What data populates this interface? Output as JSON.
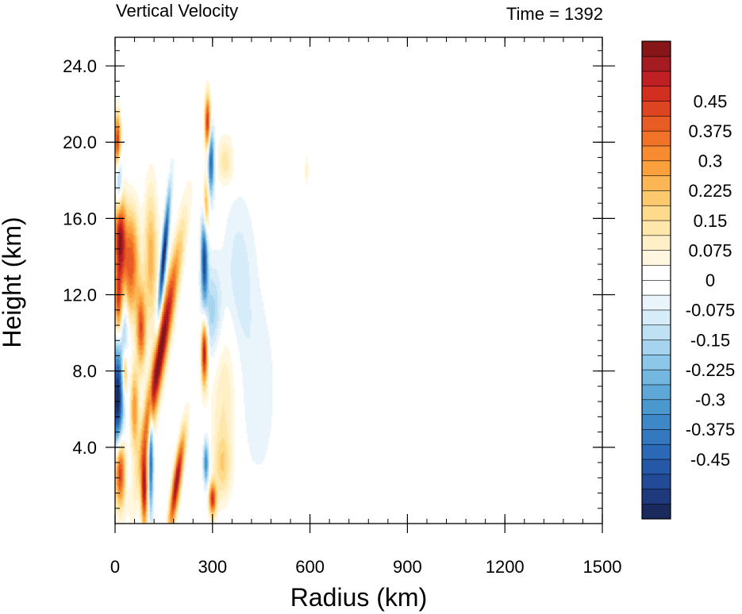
{
  "chart_data": {
    "type": "heatmap",
    "title": "Vertical Velocity",
    "subtitle": "Time = 1392",
    "xlabel": "Radius (km)",
    "ylabel": "Height (km)",
    "xlim": [
      0,
      1500
    ],
    "ylim": [
      0,
      25.5
    ],
    "x_ticks": [
      0,
      300,
      600,
      900,
      1200,
      1500
    ],
    "x_tick_labels": [
      "0",
      "300",
      "600",
      "900",
      "1200",
      "1500"
    ],
    "y_ticks": [
      4,
      8,
      12,
      16,
      20,
      24
    ],
    "y_tick_labels": [
      "4.0",
      "8.0",
      "12.0",
      "16.0",
      "20.0",
      "24.0"
    ],
    "grid": false,
    "colorbar": {
      "levels": [
        -0.5625,
        -0.525,
        -0.4875,
        -0.45,
        -0.4125,
        -0.375,
        -0.3375,
        -0.3,
        -0.2625,
        -0.225,
        -0.1875,
        -0.15,
        -0.1125,
        -0.075,
        -0.0375,
        0,
        0.0375,
        0.075,
        0.1125,
        0.15,
        0.1875,
        0.225,
        0.2625,
        0.3,
        0.3375,
        0.375,
        0.4125,
        0.45,
        0.4875,
        0.525,
        0.5625
      ],
      "tick_values": [
        -0.45,
        -0.375,
        -0.3,
        -0.225,
        -0.15,
        -0.075,
        0,
        0.075,
        0.15,
        0.225,
        0.3,
        0.375,
        0.45
      ],
      "tick_labels": [
        "-0.45",
        "-0.375",
        "-0.3",
        "-0.225",
        "-0.15",
        "-0.075",
        "0",
        "0.075",
        "0.15",
        "0.225",
        "0.3",
        "0.375",
        "0.45"
      ],
      "colors": [
        "#1b2a5c",
        "#1f3a7c",
        "#234a96",
        "#2658a8",
        "#2b68b6",
        "#3478bf",
        "#3f88c7",
        "#4b98cf",
        "#5ea8d8",
        "#73b7e0",
        "#8cc6e8",
        "#a6d4ee",
        "#bfe1f3",
        "#d6ecf8",
        "#eaf5fb",
        "#ffffff",
        "#ffffff",
        "#fff7e0",
        "#fff0c8",
        "#fee7aa",
        "#fedb8c",
        "#fdc96f",
        "#fcb554",
        "#faa13e",
        "#f68b31",
        "#f07329",
        "#e85c25",
        "#dd4422",
        "#d32f21",
        "#c01f23",
        "#a51b22",
        "#861618"
      ]
    },
    "features": [
      {
        "x": 140,
        "y": 9,
        "sx": 14,
        "sy": 3.8,
        "v": 0.62,
        "tilt": 10
      },
      {
        "x": 190,
        "y": 2.2,
        "sx": 9,
        "sy": 1.8,
        "v": 0.56,
        "tilt": 8
      },
      {
        "x": 90,
        "y": 1.8,
        "sx": 7,
        "sy": 1.4,
        "v": 0.52,
        "tilt": 0
      },
      {
        "x": 15,
        "y": 2.8,
        "sx": 11,
        "sy": 1.3,
        "v": 0.52,
        "tilt": 0
      },
      {
        "x": 15,
        "y": 15,
        "sx": 12,
        "sy": 1.6,
        "v": 0.55,
        "tilt": 0
      },
      {
        "x": 8,
        "y": 20,
        "sx": 7,
        "sy": 1.0,
        "v": 0.5,
        "tilt": 0
      },
      {
        "x": 50,
        "y": 14.5,
        "sx": 16,
        "sy": 1.6,
        "v": 0.28,
        "tilt": 0
      },
      {
        "x": 45,
        "y": 12.5,
        "sx": 20,
        "sy": 1.5,
        "v": 0.22,
        "tilt": 0
      },
      {
        "x": 80,
        "y": 10.2,
        "sx": 10,
        "sy": 1.4,
        "v": 0.4,
        "tilt": 0
      },
      {
        "x": 110,
        "y": 14,
        "sx": 14,
        "sy": 2.5,
        "v": 0.25,
        "tilt": 0
      },
      {
        "x": 8,
        "y": 6.5,
        "sx": 12,
        "sy": 2.0,
        "v": -0.62,
        "tilt": 0
      },
      {
        "x": 150,
        "y": 14,
        "sx": 6,
        "sy": 2.2,
        "v": -0.6,
        "tilt": 5
      },
      {
        "x": 110,
        "y": 3.5,
        "sx": 5,
        "sy": 2.0,
        "v": -0.45,
        "tilt": 0
      },
      {
        "x": 12,
        "y": 18,
        "sx": 7,
        "sy": 1.2,
        "v": -0.3,
        "tilt": 0
      },
      {
        "x": 30,
        "y": 10,
        "sx": 8,
        "sy": 1.6,
        "v": -0.2,
        "tilt": 0
      },
      {
        "x": 275,
        "y": 9,
        "sx": 7,
        "sy": 1.2,
        "v": 0.56,
        "tilt": 0
      },
      {
        "x": 285,
        "y": 21,
        "sx": 6,
        "sy": 1.0,
        "v": 0.5,
        "tilt": 0
      },
      {
        "x": 280,
        "y": 16.5,
        "sx": 6,
        "sy": 1.2,
        "v": 0.32,
        "tilt": 0
      },
      {
        "x": 300,
        "y": 1.3,
        "sx": 8,
        "sy": 0.6,
        "v": 0.45,
        "tilt": 0
      },
      {
        "x": 275,
        "y": 14,
        "sx": 7,
        "sy": 1.6,
        "v": -0.52,
        "tilt": 0
      },
      {
        "x": 295,
        "y": 19,
        "sx": 7,
        "sy": 1.2,
        "v": -0.45,
        "tilt": 0
      },
      {
        "x": 300,
        "y": 11,
        "sx": 22,
        "sy": 1.8,
        "v": -0.18,
        "tilt": 0
      },
      {
        "x": 280,
        "y": 3.2,
        "sx": 6,
        "sy": 0.8,
        "v": -0.35,
        "tilt": 0
      },
      {
        "x": 335,
        "y": 7,
        "sx": 28,
        "sy": 3.0,
        "v": 0.12,
        "tilt": 0
      },
      {
        "x": 340,
        "y": 19,
        "sx": 18,
        "sy": 0.9,
        "v": 0.14,
        "tilt": 0
      },
      {
        "x": 380,
        "y": 13,
        "sx": 35,
        "sy": 3.0,
        "v": -0.1,
        "tilt": 0
      },
      {
        "x": 440,
        "y": 7,
        "sx": 40,
        "sy": 3.5,
        "v": -0.07,
        "tilt": 0
      },
      {
        "x": 330,
        "y": 3,
        "sx": 18,
        "sy": 1.2,
        "v": 0.15,
        "tilt": 0
      },
      {
        "x": 590,
        "y": 18.5,
        "sx": 4,
        "sy": 0.6,
        "v": 0.08,
        "tilt": 0
      },
      {
        "x": 10,
        "y": 11.5,
        "sx": 8,
        "sy": 1.2,
        "v": 0.38,
        "tilt": 0
      },
      {
        "x": 30,
        "y": 8,
        "sx": 6,
        "sy": 0.9,
        "v": 0.35,
        "tilt": 0
      },
      {
        "x": 60,
        "y": 6,
        "sx": 9,
        "sy": 1.5,
        "v": 0.3,
        "tilt": 0
      }
    ]
  }
}
